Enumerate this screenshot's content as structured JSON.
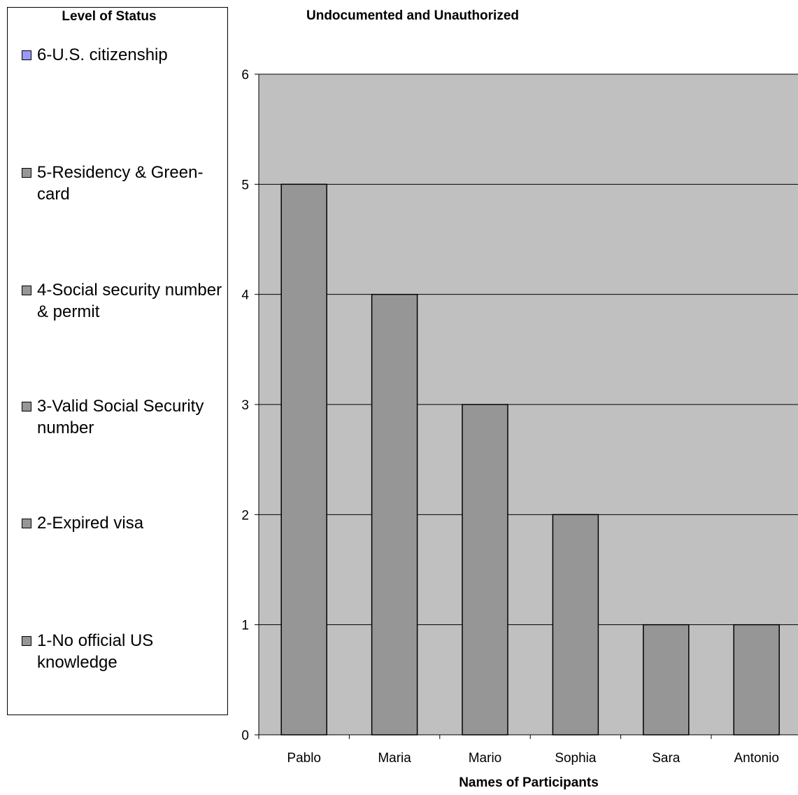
{
  "legend": {
    "title": "Level of Status",
    "items": [
      {
        "label": "6-U.S. citizenship",
        "color": "#9999ff"
      },
      {
        "label": "5-Residency & Green-card",
        "color": "#969696"
      },
      {
        "label": "4-Social security number & permit",
        "color": "#969696"
      },
      {
        "label": "3-Valid Social Security number",
        "color": "#969696"
      },
      {
        "label": "2-Expired visa",
        "color": "#969696"
      },
      {
        "label": "1-No official US knowledge",
        "color": "#969696"
      }
    ]
  },
  "chart_data": {
    "type": "bar",
    "title": "Undocumented and Unauthorized",
    "xlabel": "Names of Participants",
    "ylabel": "",
    "categories": [
      "Pablo",
      "Maria",
      "Mario",
      "Sophia",
      "Sara",
      "Antonio"
    ],
    "values": [
      5,
      4,
      3,
      2,
      1,
      1
    ],
    "ylim": [
      0,
      6
    ],
    "yticks": [
      0,
      1,
      2,
      3,
      4,
      5,
      6
    ],
    "grid": true,
    "legend_position": "left",
    "bar_color": "#969696",
    "plot_background": "#c0c0c0"
  }
}
